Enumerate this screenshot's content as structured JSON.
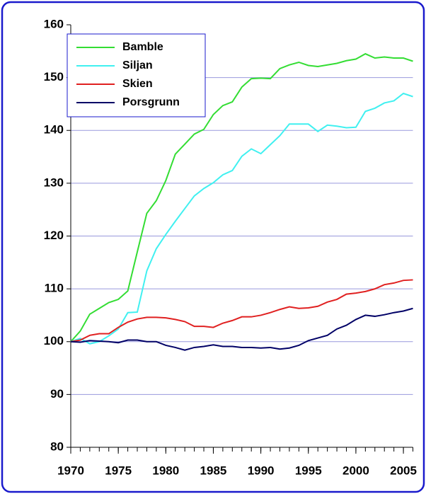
{
  "chart_data": {
    "type": "line",
    "x": [
      1970,
      1971,
      1972,
      1973,
      1974,
      1975,
      1976,
      1977,
      1978,
      1979,
      1980,
      1981,
      1982,
      1983,
      1984,
      1985,
      1986,
      1987,
      1988,
      1989,
      1990,
      1991,
      1992,
      1993,
      1994,
      1995,
      1996,
      1997,
      1998,
      1999,
      2000,
      2001,
      2002,
      2003,
      2004,
      2005,
      2006
    ],
    "series": [
      {
        "name": "Bamble",
        "color": "#33dd33",
        "values": [
          100,
          102,
          105.2,
          106.3,
          107.4,
          108,
          109.6,
          117,
          124.3,
          126.7,
          130.5,
          135.5,
          137.4,
          139.3,
          140.2,
          143,
          144.7,
          145.4,
          148.2,
          149.8,
          149.9,
          149.8,
          151.7,
          152.4,
          152.9,
          152.3,
          152.1,
          152.4,
          152.7,
          153.2,
          153.5,
          154.5,
          153.7,
          153.9,
          153.7,
          153.7,
          153.1
        ]
      },
      {
        "name": "Siljan",
        "color": "#40f0f0",
        "values": [
          100,
          100.6,
          99.6,
          100,
          101.1,
          102.4,
          105.5,
          105.6,
          113.4,
          117.6,
          120.3,
          122.8,
          125.2,
          127.6,
          129,
          130.1,
          131.6,
          132.4,
          135.1,
          136.5,
          135.6,
          137.3,
          139,
          141.2,
          141.2,
          141.2,
          139.8,
          141,
          140.8,
          140.5,
          140.6,
          143.6,
          144.2,
          145.2,
          145.6,
          147,
          146.4
        ]
      },
      {
        "name": "Skien",
        "color": "#e02020",
        "values": [
          100,
          100.3,
          101.2,
          101.5,
          101.5,
          102.7,
          103.7,
          104.3,
          104.6,
          104.6,
          104.5,
          104.2,
          103.8,
          102.9,
          102.9,
          102.7,
          103.5,
          104,
          104.7,
          104.7,
          105,
          105.5,
          106.1,
          106.6,
          106.3,
          106.4,
          106.7,
          107.5,
          108,
          109,
          109.2,
          109.5,
          110,
          110.8,
          111.1,
          111.6,
          111.7
        ]
      },
      {
        "name": "Porsgrunn",
        "color": "#000066",
        "values": [
          100,
          99.9,
          100.2,
          100.1,
          100,
          99.8,
          100.3,
          100.3,
          100,
          100,
          99.3,
          98.9,
          98.4,
          98.9,
          99.1,
          99.4,
          99.1,
          99.1,
          98.9,
          98.9,
          98.8,
          98.9,
          98.6,
          98.8,
          99.3,
          100.2,
          100.7,
          101.2,
          102.4,
          103.1,
          104.2,
          105,
          104.8,
          105.1,
          105.5,
          105.8,
          106.3
        ]
      }
    ],
    "xlim": [
      1970,
      2006
    ],
    "xticks": [
      1970,
      1975,
      1980,
      1985,
      1990,
      1995,
      2000,
      2005
    ],
    "ylim": [
      80,
      160
    ],
    "yticks": [
      80,
      90,
      100,
      110,
      120,
      130,
      140,
      150,
      160
    ],
    "grid": true,
    "legend": "upper left"
  }
}
